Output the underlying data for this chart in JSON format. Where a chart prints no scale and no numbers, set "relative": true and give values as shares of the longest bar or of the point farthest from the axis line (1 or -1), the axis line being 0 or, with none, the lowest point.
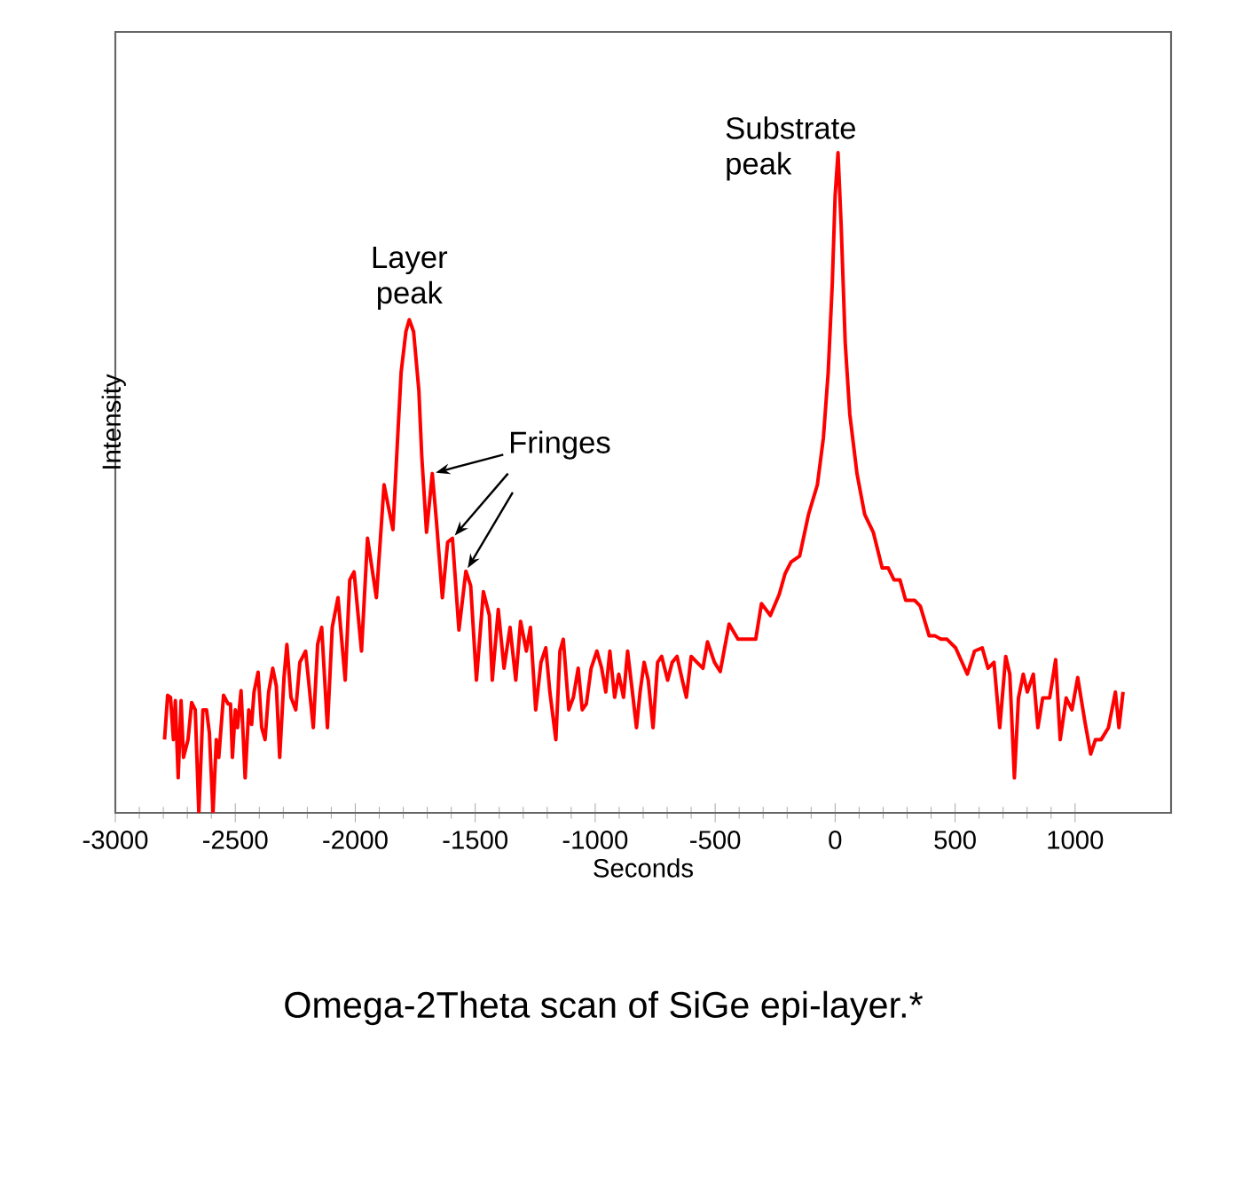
{
  "chart_data": {
    "type": "line",
    "title": "Omega-2Theta scan of SiGe epi-layer.*",
    "xlabel": "Seconds",
    "ylabel": "Intensity",
    "relative": true,
    "color": "#ff0000",
    "xlim": [
      -3000,
      1400
    ],
    "xticks": [
      -3000,
      -2500,
      -2000,
      -1500,
      -1000,
      -500,
      0,
      500,
      1000
    ],
    "x": [
      -2795,
      -2782,
      -2770,
      -2758,
      -2750,
      -2738,
      -2726,
      -2716,
      -2697,
      -2682,
      -2667,
      -2652,
      -2635,
      -2620,
      -2608,
      -2593,
      -2579,
      -2569,
      -2549,
      -2530,
      -2520,
      -2512,
      -2500,
      -2491,
      -2476,
      -2459,
      -2444,
      -2432,
      -2422,
      -2405,
      -2390,
      -2376,
      -2361,
      -2344,
      -2329,
      -2315,
      -2297,
      -2285,
      -2268,
      -2248,
      -2231,
      -2207,
      -2175,
      -2157,
      -2140,
      -2116,
      -2096,
      -2072,
      -2042,
      -2023,
      -2005,
      -1974,
      -1949,
      -1912,
      -1880,
      -1843,
      -1826,
      -1809,
      -1789,
      -1775,
      -1757,
      -1735,
      -1723,
      -1703,
      -1679,
      -1662,
      -1637,
      -1615,
      -1595,
      -1568,
      -1539,
      -1519,
      -1495,
      -1466,
      -1441,
      -1429,
      -1404,
      -1380,
      -1355,
      -1331,
      -1311,
      -1287,
      -1270,
      -1248,
      -1226,
      -1206,
      -1189,
      -1164,
      -1147,
      -1133,
      -1110,
      -1091,
      -1071,
      -1054,
      -1037,
      -1017,
      -993,
      -973,
      -956,
      -939,
      -919,
      -902,
      -882,
      -865,
      -845,
      -828,
      -813,
      -796,
      -779,
      -759,
      -740,
      -723,
      -698,
      -679,
      -659,
      -637,
      -620,
      -600,
      -576,
      -551,
      -532,
      -503,
      -479,
      -442,
      -405,
      -368,
      -331,
      -307,
      -270,
      -233,
      -209,
      -184,
      -148,
      -111,
      -74,
      -49,
      -29,
      -12,
      0,
      12,
      25,
      42,
      61,
      91,
      123,
      159,
      196,
      221,
      245,
      270,
      294,
      331,
      355,
      392,
      417,
      441,
      466,
      502,
      551,
      581,
      613,
      637,
      662,
      686,
      711,
      728,
      747,
      764,
      784,
      801,
      826,
      845,
      865,
      894,
      919,
      938,
      963,
      987,
      1011,
      1041,
      1065,
      1085,
      1109,
      1139,
      1168,
      1183,
      1200
    ],
    "values": [
      0.111,
      0.178,
      0.175,
      0.111,
      0.17,
      0.053,
      0.17,
      0.084,
      0.111,
      0.167,
      0.156,
      0,
      0.156,
      0.156,
      0.121,
      0,
      0.111,
      0.084,
      0.178,
      0.165,
      0.165,
      0.084,
      0.156,
      0.129,
      0.185,
      0.053,
      0.156,
      0.134,
      0.183,
      0.213,
      0.129,
      0.111,
      0.183,
      0.219,
      0.192,
      0.084,
      0.205,
      0.255,
      0.175,
      0.156,
      0.228,
      0.245,
      0.129,
      0.255,
      0.281,
      0.129,
      0.281,
      0.326,
      0.201,
      0.353,
      0.365,
      0.245,
      0.416,
      0.326,
      0.497,
      0.429,
      0.55,
      0.667,
      0.729,
      0.747,
      0.729,
      0.64,
      0.541,
      0.425,
      0.514,
      0.443,
      0.326,
      0.41,
      0.416,
      0.277,
      0.366,
      0.344,
      0.201,
      0.335,
      0.299,
      0.201,
      0.308,
      0.219,
      0.281,
      0.201,
      0.29,
      0.245,
      0.281,
      0.156,
      0.228,
      0.25,
      0.183,
      0.111,
      0.245,
      0.263,
      0.156,
      0.175,
      0.219,
      0.156,
      0.165,
      0.219,
      0.245,
      0.219,
      0.183,
      0.245,
      0.175,
      0.21,
      0.175,
      0.245,
      0.183,
      0.129,
      0.183,
      0.228,
      0.201,
      0.129,
      0.228,
      0.237,
      0.201,
      0.228,
      0.237,
      0.201,
      0.175,
      0.237,
      0.228,
      0.219,
      0.259,
      0.228,
      0.214,
      0.286,
      0.263,
      0.263,
      0.263,
      0.317,
      0.299,
      0.331,
      0.362,
      0.38,
      0.389,
      0.452,
      0.497,
      0.568,
      0.667,
      0.801,
      0.935,
      1.0,
      0.891,
      0.712,
      0.604,
      0.514,
      0.452,
      0.425,
      0.371,
      0.371,
      0.353,
      0.353,
      0.322,
      0.322,
      0.313,
      0.268,
      0.268,
      0.263,
      0.263,
      0.25,
      0.21,
      0.245,
      0.25,
      0.219,
      0.228,
      0.129,
      0.237,
      0.21,
      0.053,
      0.174,
      0.21,
      0.183,
      0.21,
      0.129,
      0.174,
      0.174,
      0.232,
      0.111,
      0.174,
      0.156,
      0.205,
      0.138,
      0.089,
      0.111,
      0.111,
      0.129,
      0.183,
      0.129,
      0.183
    ],
    "annotations": [
      {
        "text": "Layer peak",
        "x": -1775,
        "y": 0.747
      },
      {
        "text": "Fringes",
        "x": -1679,
        "y": 0.514
      },
      {
        "text": "Substrate peak",
        "x": 12,
        "y": 1.0
      }
    ]
  }
}
